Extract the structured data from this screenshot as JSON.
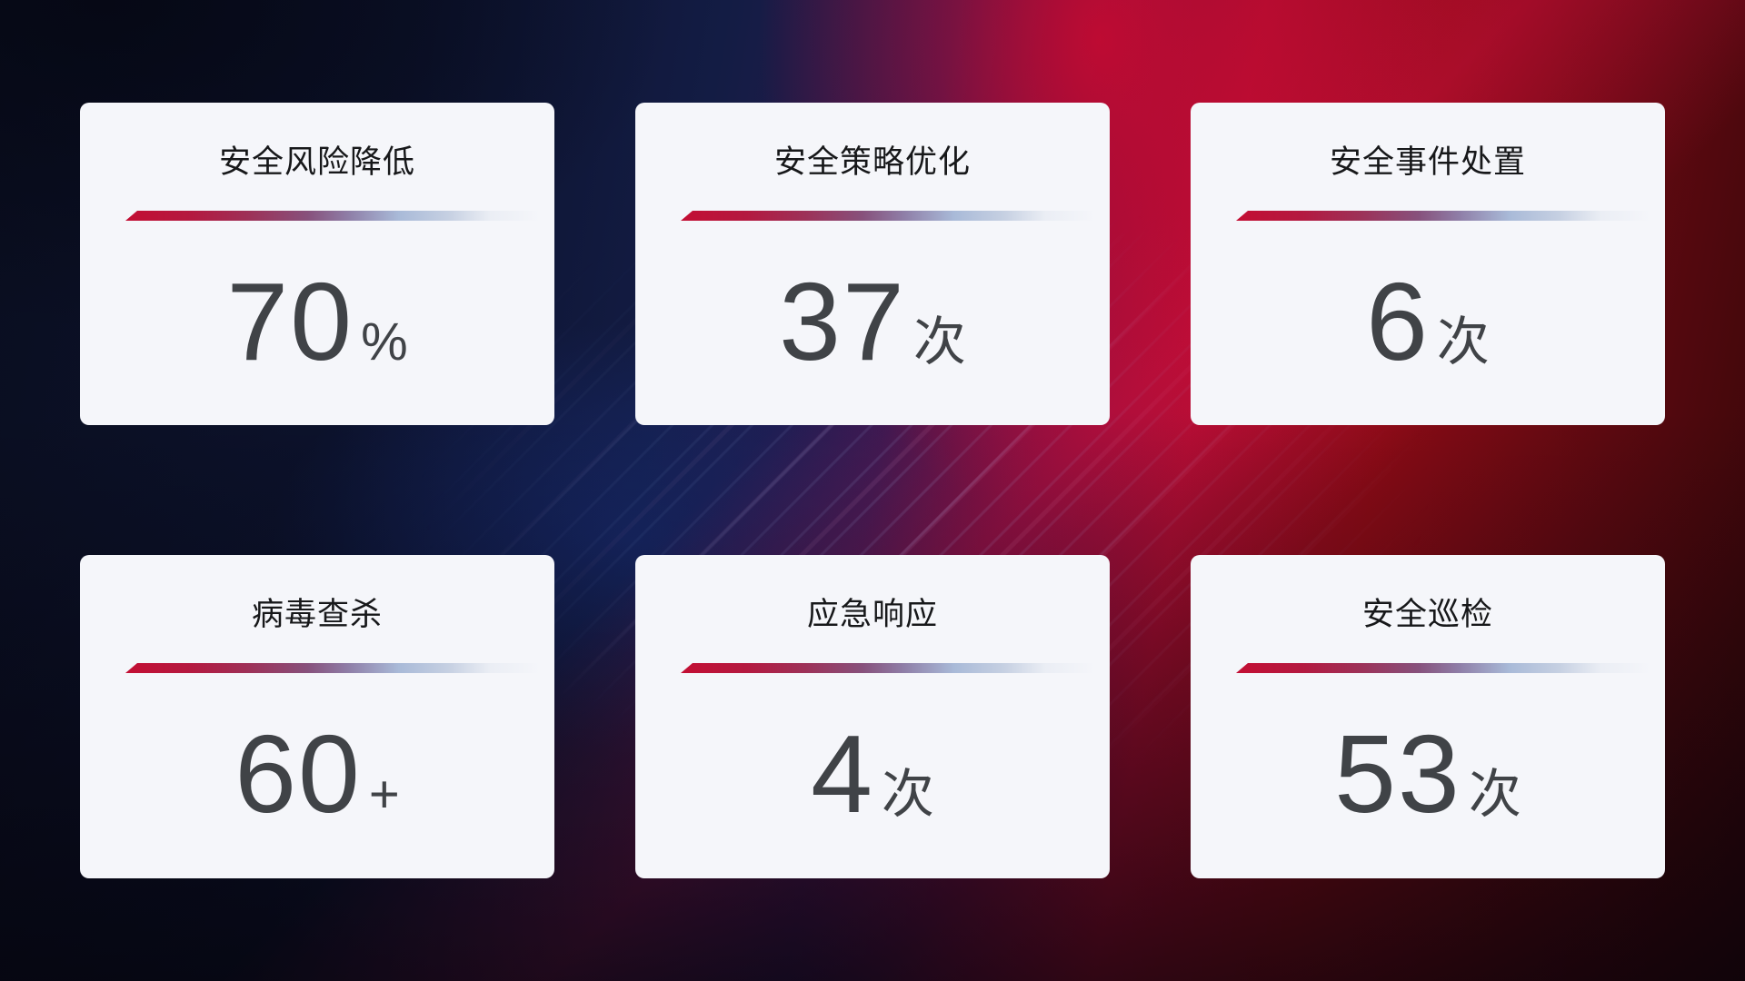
{
  "colors": {
    "card_bg": "#f5f6fa",
    "title": "#17181a",
    "value": "#404347",
    "divider_red": "#c30e33",
    "divider_blue": "#a9bad8",
    "bg_navy": "#0c122c",
    "bg_blue": "#131c44",
    "bg_crimson": "#a30d2e",
    "bg_dark_red": "#5c0910"
  },
  "cards": [
    {
      "title": "安全风险降低",
      "value": "70",
      "unit": "%"
    },
    {
      "title": "安全策略优化",
      "value": "37",
      "unit": "次"
    },
    {
      "title": "安全事件处置",
      "value": "6",
      "unit": "次"
    },
    {
      "title": "病毒查杀",
      "value": "60",
      "unit": "+"
    },
    {
      "title": "应急响应",
      "value": "4",
      "unit": "次"
    },
    {
      "title": "安全巡检",
      "value": "53",
      "unit": "次"
    }
  ]
}
